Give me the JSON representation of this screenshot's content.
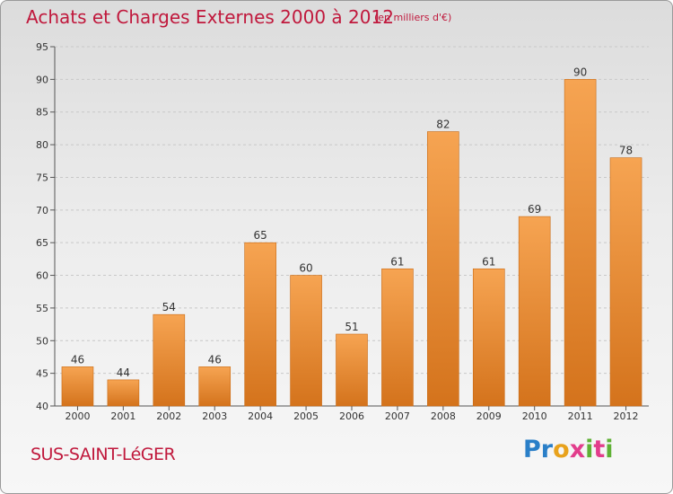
{
  "header": {
    "title": "Achats et Charges Externes 2000 à 2012",
    "subtitle": "(en milliers d'€)"
  },
  "footer": {
    "commune": "SUS-SAINT-LéGER",
    "logo_letters": [
      {
        "char": "P",
        "color": "#2a7fc8"
      },
      {
        "char": "r",
        "color": "#2a7fc8"
      },
      {
        "char": "o",
        "color": "#e8a21c"
      },
      {
        "char": "x",
        "color": "#e23d8c"
      },
      {
        "char": "i",
        "color": "#5fb135"
      },
      {
        "char": "t",
        "color": "#e23d8c"
      },
      {
        "char": "i",
        "color": "#5fb135"
      }
    ]
  },
  "colors": {
    "title": "#c0183c",
    "bar_light": "#f6a452",
    "bar_dark": "#d4731c",
    "grid": "#c8c8c8"
  },
  "chart_data": {
    "type": "bar",
    "title": "Achats et Charges Externes 2000 à 2012",
    "subtitle": "(en milliers d'€)",
    "categories": [
      "2000",
      "2001",
      "2002",
      "2003",
      "2004",
      "2005",
      "2006",
      "2007",
      "2008",
      "2009",
      "2010",
      "2011",
      "2012"
    ],
    "values": [
      46,
      44,
      54,
      46,
      65,
      60,
      51,
      61,
      82,
      61,
      69,
      90,
      78
    ],
    "ylim": [
      40,
      95
    ],
    "yticks": [
      40,
      45,
      50,
      55,
      60,
      65,
      70,
      75,
      80,
      85,
      90,
      95
    ],
    "grid": "horizontal dashed",
    "data_labels": true
  }
}
